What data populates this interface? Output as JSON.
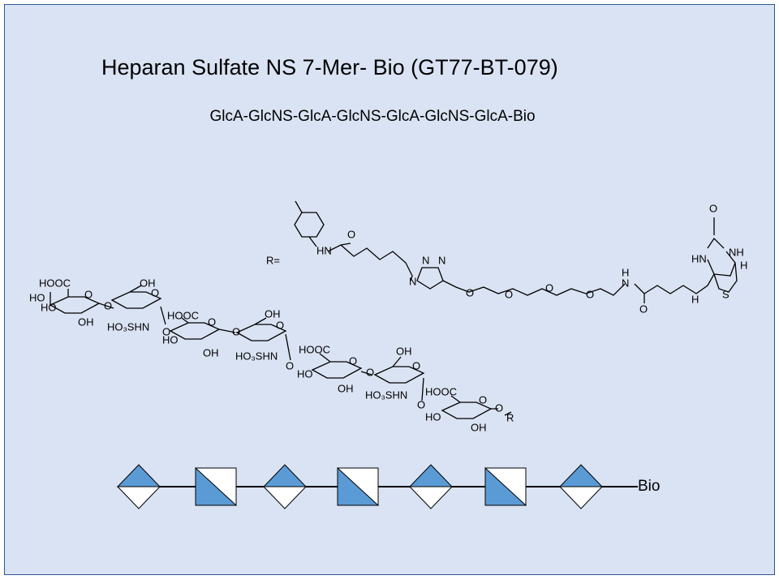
{
  "header": {
    "title": "Heparan Sulfate NS 7-Mer- Bio (GT77-BT-079)",
    "subtitle": "GlcA-GlcNS-GlcA-GlcNS-GlcA-GlcNS-GlcA-Bio"
  },
  "structure": {
    "r_label": "R=",
    "sugar_labels": [
      "HOOC",
      "HO",
      "HO",
      "O",
      "OH",
      "O",
      "OH",
      "O",
      "HO₃SHN",
      "O",
      "HOOC",
      "HO",
      "O",
      "OH",
      "O",
      "OH",
      "O",
      "HO₃SHN",
      "O",
      "HOOC",
      "HO",
      "O",
      "OH",
      "O",
      "OH",
      "O",
      "HO₃SHN",
      "O",
      "HOOC",
      "HO",
      "O",
      "OH",
      "O",
      "R"
    ],
    "linker_labels": [
      "HN",
      "O",
      "N",
      "N",
      "N",
      "O",
      "O",
      "O",
      "O",
      "H",
      "N",
      "O",
      "O",
      "HN",
      "NH",
      "H",
      "H",
      "S"
    ]
  },
  "symbol_chain": {
    "end_label": "Bio"
  }
}
